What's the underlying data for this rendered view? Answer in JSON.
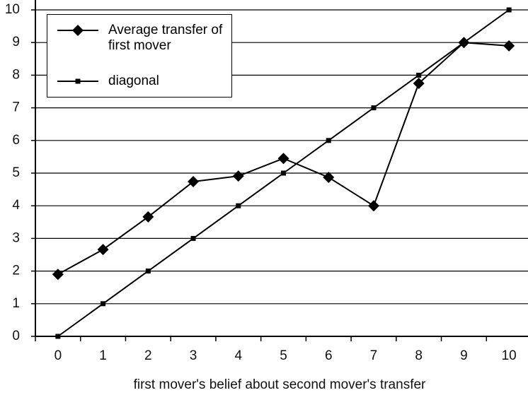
{
  "chart_data": {
    "type": "line",
    "xlabel": "first mover's belief about second mover's transfer",
    "categories": [
      "0",
      "1",
      "2",
      "3",
      "4",
      "5",
      "6",
      "7",
      "8",
      "9",
      "10"
    ],
    "series": [
      {
        "name": "Average transfer of first mover",
        "color": "#000000",
        "marker": "diamond",
        "values": [
          1.9,
          2.66,
          3.66,
          4.74,
          4.91,
          5.45,
          4.87,
          4.0,
          7.75,
          9.0,
          8.9
        ]
      },
      {
        "name": "diagonal",
        "color": "#000000",
        "marker": "square",
        "values": [
          0,
          1,
          2,
          3,
          4,
          5,
          6,
          7,
          8,
          9,
          10
        ]
      }
    ],
    "ylim": [
      0,
      10
    ],
    "yticks": [
      0,
      1,
      2,
      3,
      4,
      5,
      6,
      7,
      8,
      9,
      10
    ],
    "grid": true,
    "legend": "upper left"
  }
}
